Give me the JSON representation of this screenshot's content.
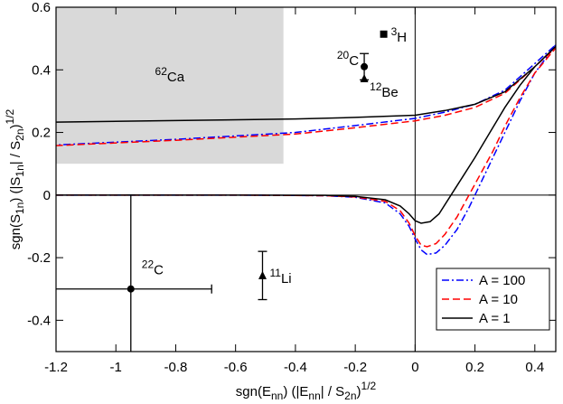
{
  "chart_data": {
    "type": "line",
    "xlabel_parts": [
      "sgn(E",
      "nn",
      ") (|E",
      "nn",
      "| / S",
      "2n",
      ")",
      "1/2"
    ],
    "ylabel_parts": [
      "sgn(S",
      "1n",
      ") (|S",
      "1n",
      "| / S",
      "2n",
      ")",
      "1/2"
    ],
    "xlim": [
      -1.2,
      0.47
    ],
    "ylim": [
      -0.5,
      0.6
    ],
    "xticks": [
      -1.2,
      -1,
      -0.8,
      -0.6,
      -0.4,
      -0.2,
      0,
      0.2,
      0.4
    ],
    "yticks": [
      -0.4,
      -0.2,
      0,
      0.2,
      0.4,
      0.6
    ],
    "shaded_region": {
      "x": [
        -1.2,
        -0.44
      ],
      "y": [
        0.1,
        0.6
      ],
      "color": "#d9d9d9"
    },
    "hlines": [
      0
    ],
    "vlines": [
      0
    ],
    "legend": "lower right",
    "series": [
      {
        "name": "A = 100",
        "color": "#0000ff",
        "dash": "dashdot",
        "x": [
          -1.2,
          -0.6,
          -0.3,
          -0.2,
          -0.1,
          -0.05,
          -0.02,
          0,
          0.02,
          0.04,
          0.07,
          0.1,
          0.14,
          0.18,
          0.22,
          0.26,
          0.3,
          0.35,
          0.4,
          0.47,
          0.4,
          0.3,
          0.2,
          0.1,
          0,
          -0.2,
          -0.4,
          -0.8,
          -1.2
        ],
        "values": [
          0,
          0,
          -0.002,
          -0.007,
          -0.025,
          -0.06,
          -0.1,
          -0.14,
          -0.175,
          -0.19,
          -0.185,
          -0.16,
          -0.11,
          -0.04,
          0.04,
          0.12,
          0.2,
          0.3,
          0.39,
          0.48,
          0.42,
          0.335,
          0.29,
          0.265,
          0.245,
          0.222,
          0.2,
          0.178,
          0.16
        ]
      },
      {
        "name": "A = 10",
        "color": "#ff0000",
        "dash": "dashed",
        "x": [
          -1.2,
          -0.6,
          -0.3,
          -0.2,
          -0.1,
          -0.05,
          -0.02,
          0,
          0.02,
          0.04,
          0.07,
          0.1,
          0.14,
          0.18,
          0.22,
          0.26,
          0.3,
          0.35,
          0.4,
          0.47,
          0.4,
          0.3,
          0.2,
          0.1,
          0,
          -0.2,
          -0.4,
          -0.8,
          -1.2
        ],
        "values": [
          0,
          0,
          -0.002,
          -0.006,
          -0.02,
          -0.05,
          -0.09,
          -0.13,
          -0.16,
          -0.165,
          -0.155,
          -0.125,
          -0.07,
          0,
          0.07,
          0.14,
          0.22,
          0.31,
          0.39,
          0.47,
          0.41,
          0.325,
          0.28,
          0.255,
          0.237,
          0.215,
          0.195,
          0.175,
          0.158
        ]
      },
      {
        "name": "A = 1",
        "color": "#000000",
        "dash": "solid",
        "x": [
          -1.2,
          -0.6,
          -0.3,
          -0.2,
          -0.1,
          -0.05,
          -0.02,
          0,
          0.02,
          0.05,
          0.08,
          0.12,
          0.16,
          0.2,
          0.25,
          0.3,
          0.35,
          0.4,
          0.47,
          0.4,
          0.3,
          0.2,
          0.1,
          0,
          -0.2,
          -0.4,
          -0.8,
          -1.2
        ],
        "values": [
          0,
          0,
          -0.001,
          -0.004,
          -0.015,
          -0.035,
          -0.06,
          -0.082,
          -0.09,
          -0.085,
          -0.06,
          0,
          0.06,
          0.12,
          0.2,
          0.28,
          0.35,
          0.41,
          0.475,
          0.41,
          0.33,
          0.29,
          0.27,
          0.255,
          0.248,
          0.243,
          0.238,
          0.233
        ]
      }
    ],
    "points": [
      {
        "mass": "3",
        "symbol": "H",
        "x": -0.105,
        "y": 0.514,
        "marker": "square",
        "label_side": "right"
      },
      {
        "mass": "20",
        "symbol": "C",
        "x": -0.17,
        "y": 0.41,
        "yerr": 0.042,
        "marker": "circle",
        "label_side": "left"
      },
      {
        "mass": "12",
        "symbol": "Be",
        "x": -0.17,
        "y": 0.372,
        "marker": "triangle",
        "label_side": "below-right"
      },
      {
        "mass": "22",
        "symbol": "C",
        "x": -0.95,
        "y": -0.3,
        "xerr": 0.27,
        "yerr": 0.3,
        "marker": "circle",
        "label_side": "above-right"
      },
      {
        "mass": "11",
        "symbol": "Li",
        "x": -0.51,
        "y": -0.257,
        "yerr": 0.077,
        "marker": "triangle",
        "label_side": "right"
      }
    ],
    "labels": [
      {
        "mass": "62",
        "symbol": "Ca",
        "x": -0.82,
        "y": 0.38
      }
    ]
  }
}
